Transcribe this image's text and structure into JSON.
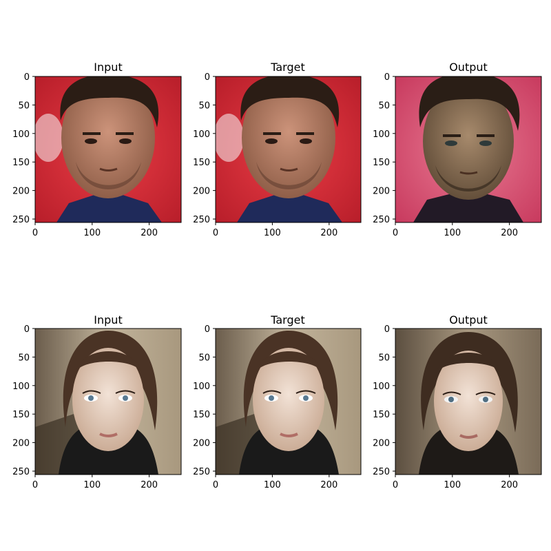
{
  "chart_data": [
    {
      "type": "image",
      "title": "Input",
      "subject": "man-face-red-background",
      "xlim": [
        0,
        256
      ],
      "ylim": [
        256,
        0
      ],
      "xticks": [
        0,
        100,
        200
      ],
      "yticks": [
        0,
        50,
        100,
        150,
        200,
        250
      ]
    },
    {
      "type": "image",
      "title": "Target",
      "subject": "man-face-red-background",
      "xlim": [
        0,
        256
      ],
      "ylim": [
        256,
        0
      ],
      "xticks": [
        0,
        100,
        200
      ],
      "yticks": [
        0,
        50,
        100,
        150,
        200,
        250
      ]
    },
    {
      "type": "image",
      "title": "Output",
      "subject": "man-face-pink-background",
      "xlim": [
        0,
        256
      ],
      "ylim": [
        256,
        0
      ],
      "xticks": [
        0,
        100,
        200
      ],
      "yticks": [
        0,
        50,
        100,
        150,
        200,
        250
      ]
    },
    {
      "type": "image",
      "title": "Input",
      "subject": "woman-face-beige-background",
      "xlim": [
        0,
        256
      ],
      "ylim": [
        256,
        0
      ],
      "xticks": [
        0,
        100,
        200
      ],
      "yticks": [
        0,
        50,
        100,
        150,
        200,
        250
      ]
    },
    {
      "type": "image",
      "title": "Target",
      "subject": "woman-face-beige-background",
      "xlim": [
        0,
        256
      ],
      "ylim": [
        256,
        0
      ],
      "xticks": [
        0,
        100,
        200
      ],
      "yticks": [
        0,
        50,
        100,
        150,
        200,
        250
      ]
    },
    {
      "type": "image",
      "title": "Output",
      "subject": "woman-face-blurred-background",
      "xlim": [
        0,
        256
      ],
      "ylim": [
        256,
        0
      ],
      "xticks": [
        0,
        100,
        200
      ],
      "yticks": [
        0,
        50,
        100,
        150,
        200,
        250
      ]
    }
  ],
  "colors": {
    "axis": "#000000",
    "red_background": "#d8323c",
    "pink_background": "#d9486a",
    "beige_background": "#b7a88f",
    "skin_man": "#b47a5e",
    "skin_woman": "#e4cbb7",
    "hair_man": "#2b1d15",
    "hair_woman": "#4a3325",
    "shirt_man": "#1f2a5a",
    "shirt_woman": "#1a1a1a"
  }
}
